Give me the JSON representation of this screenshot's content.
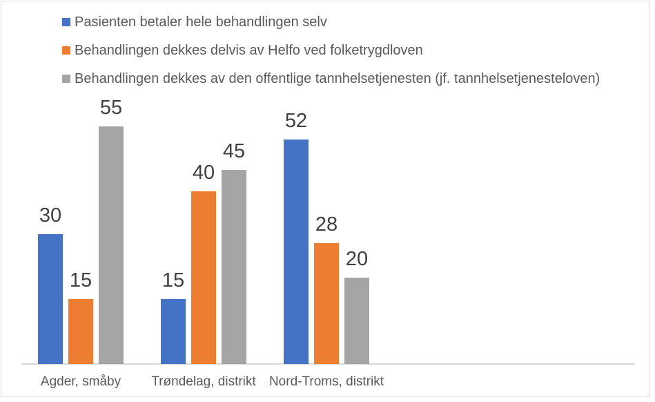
{
  "colors": {
    "border_color": "#D9D9D9",
    "axis_line_color": "#D9D9D9",
    "legend_text_color": "#595959",
    "axis_text_color": "#595959",
    "value_label_color": "#404040",
    "background": "#FFFFFF"
  },
  "chart_data": {
    "type": "bar",
    "title": "",
    "xlabel": "",
    "ylabel": "",
    "categories": [
      "Agder, småby",
      "Trøndelag, distrikt",
      "Nord-Troms, distrikt"
    ],
    "series": [
      {
        "name": "Pasienten betaler hele behandlingen selv",
        "color": "#4472C4",
        "values": [
          30,
          15,
          52
        ]
      },
      {
        "name": "Behandlingen dekkes delvis av Helfo ved folketrygdloven",
        "color": "#ED7D31",
        "values": [
          15,
          40,
          28
        ]
      },
      {
        "name": "Behandlingen dekkes av den offentlige tannhelsetjenesten (jf. tannhelsetjenesteloven)",
        "color": "#A5A5A5",
        "values": [
          55,
          45,
          20
        ]
      }
    ],
    "ylim": [
      0,
      60
    ],
    "grid": false,
    "y_axis_visible": false,
    "value_labels": true,
    "legend_position": "top-left"
  }
}
